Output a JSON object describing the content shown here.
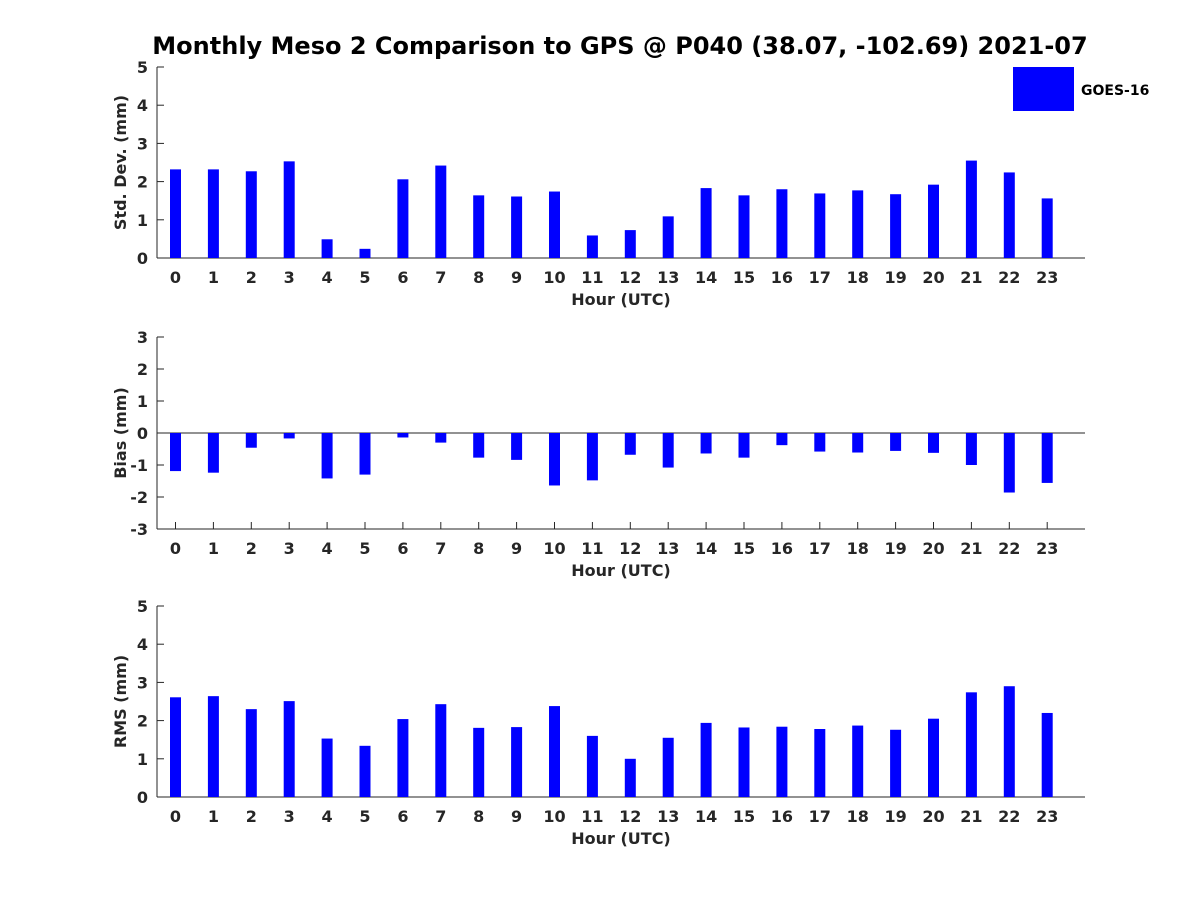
{
  "figure": {
    "title": "Monthly Meso 2 Comparison to GPS @ P040 (38.07, -102.69) 2021-07"
  },
  "legend": {
    "label": "GOES-16",
    "color": "#0000ff",
    "placement": "top-right"
  },
  "chart_data": [
    {
      "type": "bar",
      "title": "",
      "xlabel": "Hour (UTC)",
      "ylabel": "Std. Dev. (mm)",
      "categories": [
        "0",
        "1",
        "2",
        "3",
        "4",
        "5",
        "6",
        "7",
        "8",
        "9",
        "10",
        "11",
        "12",
        "13",
        "14",
        "15",
        "16",
        "17",
        "18",
        "19",
        "20",
        "21",
        "22",
        "23"
      ],
      "series": [
        {
          "name": "GOES-16",
          "color": "#0000ff",
          "values": [
            2.32,
            2.32,
            2.27,
            2.53,
            0.49,
            0.24,
            2.06,
            2.42,
            1.64,
            1.61,
            1.74,
            0.59,
            0.73,
            1.09,
            1.83,
            1.64,
            1.8,
            1.69,
            1.77,
            1.67,
            1.92,
            2.55,
            2.24,
            1.56
          ]
        }
      ],
      "ylim": [
        0,
        5
      ],
      "yticks": [
        0,
        1,
        2,
        3,
        4,
        5
      ],
      "grid": false
    },
    {
      "type": "bar",
      "title": "",
      "xlabel": "Hour (UTC)",
      "ylabel": "Bias (mm)",
      "categories": [
        "0",
        "1",
        "2",
        "3",
        "4",
        "5",
        "6",
        "7",
        "8",
        "9",
        "10",
        "11",
        "12",
        "13",
        "14",
        "15",
        "16",
        "17",
        "18",
        "19",
        "20",
        "21",
        "22",
        "23"
      ],
      "series": [
        {
          "name": "GOES-16",
          "color": "#0000ff",
          "values": [
            -1.19,
            -1.24,
            -0.46,
            -0.17,
            -1.42,
            -1.3,
            -0.14,
            -0.3,
            -0.77,
            -0.84,
            -1.64,
            -1.48,
            -0.68,
            -1.08,
            -0.64,
            -0.77,
            -0.38,
            -0.58,
            -0.61,
            -0.56,
            -0.62,
            -1.0,
            -1.86,
            -1.56
          ]
        }
      ],
      "ylim": [
        -3,
        3
      ],
      "yticks": [
        -3,
        -2,
        -1,
        0,
        1,
        2,
        3
      ],
      "zero_line": true,
      "grid": false
    },
    {
      "type": "bar",
      "title": "",
      "xlabel": "Hour (UTC)",
      "ylabel": "RMS (mm)",
      "categories": [
        "0",
        "1",
        "2",
        "3",
        "4",
        "5",
        "6",
        "7",
        "8",
        "9",
        "10",
        "11",
        "12",
        "13",
        "14",
        "15",
        "16",
        "17",
        "18",
        "19",
        "20",
        "21",
        "22",
        "23"
      ],
      "series": [
        {
          "name": "GOES-16",
          "color": "#0000ff",
          "values": [
            2.61,
            2.64,
            2.3,
            2.51,
            1.53,
            1.34,
            2.04,
            2.43,
            1.81,
            1.83,
            2.38,
            1.6,
            1.0,
            1.55,
            1.94,
            1.82,
            1.84,
            1.78,
            1.87,
            1.76,
            2.05,
            2.74,
            2.9,
            2.2
          ]
        }
      ],
      "ylim": [
        0,
        5
      ],
      "yticks": [
        0,
        1,
        2,
        3,
        4,
        5
      ],
      "grid": false
    }
  ]
}
